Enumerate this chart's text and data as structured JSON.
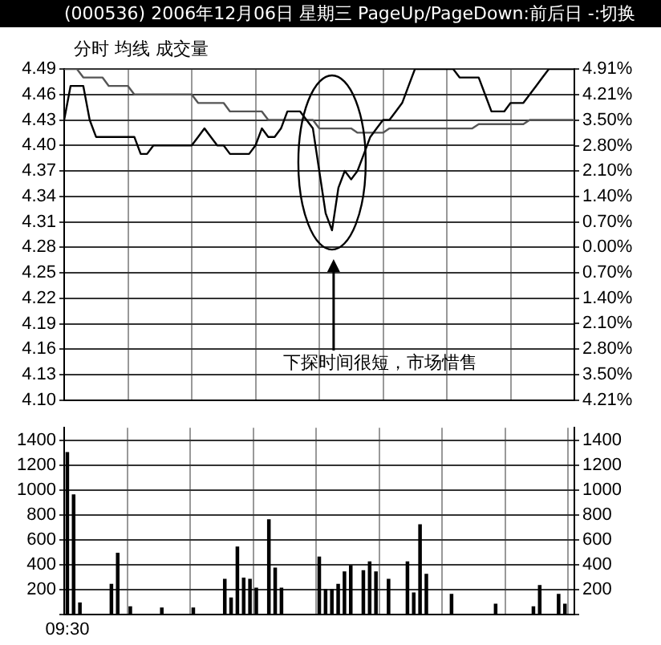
{
  "chart_data": [
    {
      "type": "line",
      "title": "(000536) 2006年12月06日 星期三 PageUp/PageDown:前后日 -:切换",
      "subtitle": "分时 均线 成交量",
      "annotations": [
        "下探时间很短，市场惜售"
      ],
      "grid": true,
      "legend": false,
      "marker": "none",
      "tick_labels": "y",
      "categories": [
        null,
        null,
        null,
        null,
        null,
        null,
        null,
        null,
        null,
        null,
        null,
        null,
        null,
        null,
        null,
        null,
        null,
        null,
        null,
        null,
        null,
        null,
        null,
        null,
        null,
        null,
        null,
        null,
        null,
        null,
        null,
        null,
        null,
        null,
        null,
        null,
        null,
        null,
        null,
        null,
        null,
        null,
        null,
        null,
        null,
        null,
        null,
        null,
        null,
        null,
        null,
        null,
        null,
        null,
        null,
        null,
        null,
        null,
        null,
        null,
        null,
        null,
        null,
        null,
        null,
        null,
        null,
        null,
        null,
        null,
        null,
        null,
        null,
        null,
        null,
        null,
        null,
        null,
        null,
        null,
        null
      ],
      "ylim": [
        4.1,
        4.49
      ],
      "yticks": [
        {
          "value": 4.1,
          "label": "4.10"
        },
        {
          "value": 4.13,
          "label": "4.13"
        },
        {
          "value": 4.16,
          "label": "4.16"
        },
        {
          "value": 4.19,
          "label": "4.19"
        },
        {
          "value": 4.22,
          "label": "4.22"
        },
        {
          "value": 4.25,
          "label": "4.25"
        },
        {
          "value": 4.28,
          "label": "4.28"
        },
        {
          "value": 4.31,
          "label": "4.31"
        },
        {
          "value": 4.34,
          "label": "4.34"
        },
        {
          "value": 4.37,
          "label": "4.37"
        },
        {
          "value": 4.4,
          "label": "4.40"
        },
        {
          "value": 4.43,
          "label": "4.43"
        },
        {
          "value": 4.46,
          "label": "4.46"
        },
        {
          "value": 4.49,
          "label": "4.49"
        }
      ],
      "y2lim": [
        -4.21,
        4.91
      ],
      "y2ticks": [
        {
          "value": 4.91,
          "label": "4.91%"
        },
        {
          "value": 4.21,
          "label": "4.21%"
        },
        {
          "value": 3.5,
          "label": "3.50%"
        },
        {
          "value": 2.8,
          "label": "2.80%"
        },
        {
          "value": 2.1,
          "label": "2.10%"
        },
        {
          "value": 1.4,
          "label": "1.40%"
        },
        {
          "value": 0.7,
          "label": "0.70%"
        },
        {
          "value": 0,
          "label": "0.00%"
        },
        {
          "value": -0.7,
          "label": "0.70%"
        },
        {
          "value": -1.4,
          "label": "1.40%"
        },
        {
          "value": -2.1,
          "label": "2.10%"
        },
        {
          "value": -2.8,
          "label": "2.80%"
        },
        {
          "value": -3.5,
          "label": "3.50%"
        },
        {
          "value": -4.21,
          "label": "4.21%"
        }
      ],
      "series": [
        {
          "color": "#000000",
          "values": [
            4.43,
            4.47,
            4.47,
            4.47,
            4.43,
            4.41,
            4.41,
            4.41,
            4.41,
            4.41,
            4.41,
            4.41,
            4.39,
            4.39,
            4.4,
            4.4,
            4.4,
            4.4,
            4.4,
            4.4,
            4.4,
            4.41,
            4.42,
            4.41,
            4.4,
            4.4,
            4.39,
            4.39,
            4.39,
            4.39,
            4.4,
            4.42,
            4.41,
            4.41,
            4.42,
            4.44,
            4.44,
            4.44,
            4.43,
            4.42,
            4.37,
            4.32,
            4.3,
            4.35,
            4.37,
            4.36,
            4.37,
            4.39,
            4.41,
            4.42,
            4.43,
            4.43,
            4.44,
            4.45,
            4.47,
            4.49,
            4.49,
            4.49,
            4.49,
            4.49,
            4.49,
            4.49,
            4.48,
            4.48,
            4.48,
            4.48,
            4.46,
            4.44,
            4.44,
            4.44,
            4.45,
            4.45,
            4.45,
            4.46,
            4.47,
            4.48,
            4.49,
            4.49,
            4.49,
            4.49,
            4.49
          ]
        },
        {
          "color": "#555555",
          "values": [
            4.49,
            4.49,
            4.49,
            4.48,
            4.48,
            4.48,
            4.48,
            4.47,
            4.47,
            4.47,
            4.47,
            4.46,
            4.46,
            4.46,
            4.46,
            4.46,
            4.46,
            4.46,
            4.46,
            4.46,
            4.46,
            4.45,
            4.45,
            4.45,
            4.45,
            4.45,
            4.44,
            4.44,
            4.44,
            4.44,
            4.44,
            4.44,
            4.43,
            4.43,
            4.43,
            4.43,
            4.43,
            4.43,
            4.43,
            4.43,
            4.42,
            4.42,
            4.42,
            4.42,
            4.42,
            4.42,
            4.415,
            4.415,
            4.415,
            4.415,
            4.415,
            4.42,
            4.42,
            4.42,
            4.42,
            4.42,
            4.42,
            4.42,
            4.42,
            4.42,
            4.42,
            4.42,
            4.42,
            4.42,
            4.42,
            4.425,
            4.425,
            4.425,
            4.425,
            4.425,
            4.425,
            4.425,
            4.425,
            4.43,
            4.43,
            4.43,
            4.43,
            4.43,
            4.43,
            4.43,
            4.43
          ]
        }
      ]
    },
    {
      "type": "bar",
      "grid": true,
      "legend": false,
      "categories": [
        "09:30",
        null,
        null,
        null,
        null,
        null,
        null,
        null,
        null,
        null,
        null,
        null,
        null,
        null,
        null,
        null,
        null,
        null,
        null,
        null,
        null,
        null,
        null,
        null,
        null,
        null,
        null,
        null,
        null,
        null,
        null,
        null,
        null,
        null,
        null,
        null,
        null,
        null,
        null,
        null,
        null,
        null,
        null,
        null,
        null,
        null,
        null,
        null,
        null,
        null,
        null,
        null,
        null,
        null,
        null,
        null,
        null,
        null,
        null,
        null,
        null,
        null,
        null,
        null,
        null,
        null,
        null,
        null,
        null,
        null,
        null,
        null,
        null,
        null,
        null,
        null,
        null,
        null,
        null,
        null,
        null
      ],
      "ylim": [
        0,
        1500
      ],
      "yticks": [
        {
          "value": 0,
          "label": null
        },
        200,
        400,
        600,
        800,
        1000,
        1200,
        1400
      ],
      "y2lim": [
        0,
        1500
      ],
      "y2ticks": [
        {
          "value": 0,
          "label": null
        },
        200,
        400,
        600,
        800,
        1000,
        1200,
        1400
      ],
      "series": [
        {
          "color": "#000000",
          "values": [
            1300,
            960,
            90,
            null,
            null,
            null,
            null,
            240,
            490,
            null,
            60,
            null,
            null,
            null,
            null,
            50,
            null,
            null,
            null,
            null,
            50,
            null,
            null,
            null,
            null,
            280,
            130,
            540,
            290,
            280,
            210,
            null,
            760,
            370,
            210,
            null,
            null,
            null,
            null,
            null,
            460,
            200,
            200,
            240,
            340,
            390,
            null,
            350,
            420,
            340,
            null,
            280,
            null,
            null,
            420,
            170,
            720,
            320,
            null,
            null,
            null,
            160,
            null,
            null,
            null,
            null,
            null,
            null,
            80,
            null,
            null,
            null,
            null,
            null,
            60,
            230,
            null,
            null,
            160,
            80,
            null
          ]
        }
      ]
    }
  ]
}
